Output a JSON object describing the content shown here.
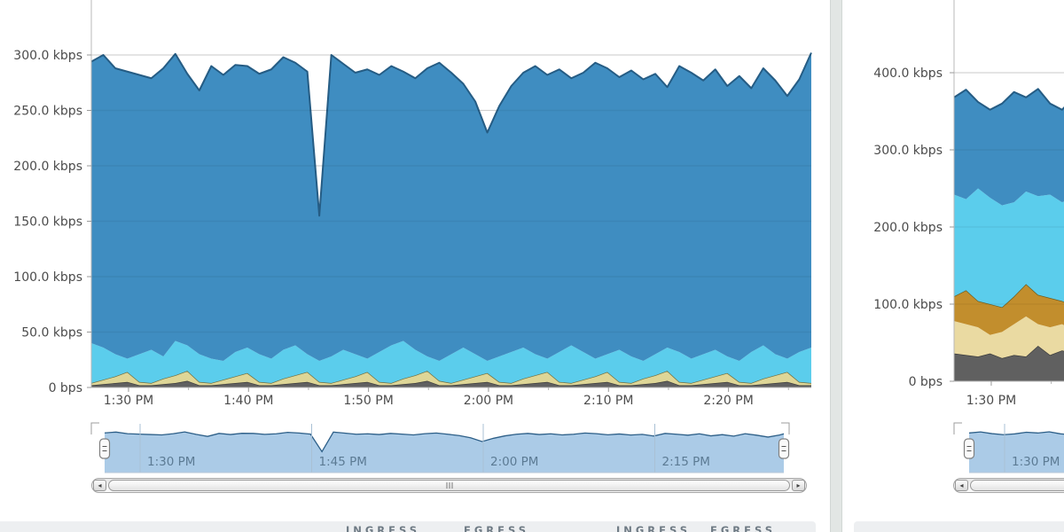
{
  "colors": {
    "blue_fill": "#3f8dc1",
    "blue_stroke": "#255c84",
    "cyan_fill": "#5bcdec",
    "tan_fill": "#ded697",
    "tan_stroke": "#6f6e3f",
    "gray_fill": "#606060",
    "gray_stroke": "#3d3d3d",
    "beige_fill": "#eadaa2",
    "ochre_fill": "#c28e2d",
    "ochre_stroke": "#6e5d20",
    "selector_fill": "#abcbe7",
    "selector_line": "#2d5f88",
    "selector_grid": "#a9c0d4",
    "selector_label": "#5c7b94",
    "axis_label": "#4c4c4c",
    "axis_line": "#b8b8b8",
    "grid_line": "#dcdcdc",
    "stats_bar_bg": "#edeff1",
    "stats_text": "#6e7a84",
    "divider": "#e2e6e4"
  },
  "ui": {
    "scroll_left_glyph": "◂",
    "scroll_right_glyph": "▸"
  },
  "left_panel": {
    "stats_headers": [
      "INGRESS",
      "EGRESS",
      "INGRESS",
      "EGRESS"
    ]
  },
  "chart_data": [
    {
      "type": "area",
      "stacked": true,
      "unit": "kbps",
      "grid": true,
      "legend": "none",
      "y_ticks": [
        {
          "label": "300.0 kbps",
          "value": 300
        },
        {
          "label": "250.0 kbps",
          "value": 250
        },
        {
          "label": "200.0 kbps",
          "value": 200
        },
        {
          "label": "150.0 kbps",
          "value": 150
        },
        {
          "label": "100.0 kbps",
          "value": 100
        },
        {
          "label": "50.0 kbps",
          "value": 50
        },
        {
          "label": "0 bps",
          "value": 0
        }
      ],
      "x_ticks": [
        {
          "label": "1:30 PM",
          "minute": 3.1
        },
        {
          "label": "1:40 PM",
          "minute": 13.1
        },
        {
          "label": "1:50 PM",
          "minute": 23.1
        },
        {
          "label": "2:00 PM",
          "minute": 33.1
        },
        {
          "label": "2:10 PM",
          "minute": 43.1
        },
        {
          "label": "2:20 PM",
          "minute": 53.1
        }
      ],
      "series": [
        {
          "name": "gray",
          "fill": "gray_fill",
          "stroke": "gray_stroke",
          "cumulative_kbps": [
            2,
            3,
            4,
            5,
            2,
            2,
            3,
            4,
            6,
            2,
            2,
            3,
            4,
            5,
            2,
            2,
            3,
            4,
            5,
            2,
            2,
            3,
            4,
            5,
            2,
            2,
            3,
            4,
            6,
            2,
            2,
            3,
            4,
            5,
            2,
            2,
            3,
            4,
            5,
            2,
            2,
            3,
            4,
            5,
            2,
            2,
            3,
            4,
            6,
            2,
            2,
            3,
            4,
            5,
            2,
            2,
            3,
            4,
            5,
            2,
            2
          ]
        },
        {
          "name": "tan",
          "fill": "tan_fill",
          "stroke": "tan_stroke",
          "cumulative_kbps": [
            4,
            7,
            10,
            14,
            5,
            4,
            8,
            11,
            15,
            5,
            4,
            7,
            10,
            13,
            5,
            4,
            8,
            11,
            14,
            5,
            4,
            7,
            10,
            14,
            5,
            4,
            8,
            11,
            15,
            6,
            4,
            7,
            10,
            13,
            5,
            4,
            8,
            11,
            14,
            5,
            4,
            7,
            10,
            14,
            5,
            4,
            8,
            11,
            15,
            5,
            4,
            7,
            10,
            13,
            5,
            4,
            8,
            11,
            14,
            5,
            4
          ]
        },
        {
          "name": "cyan",
          "fill": "cyan_fill",
          "stroke": null,
          "cumulative_kbps": [
            40,
            36,
            30,
            26,
            30,
            34,
            28,
            42,
            38,
            30,
            26,
            24,
            32,
            36,
            30,
            26,
            34,
            38,
            30,
            24,
            28,
            34,
            30,
            26,
            32,
            38,
            42,
            34,
            28,
            24,
            30,
            36,
            30,
            24,
            28,
            32,
            36,
            30,
            26,
            32,
            38,
            32,
            26,
            30,
            34,
            28,
            24,
            30,
            36,
            32,
            26,
            30,
            34,
            28,
            24,
            32,
            38,
            30,
            26,
            32,
            36
          ]
        },
        {
          "name": "blue",
          "fill": "blue_fill",
          "stroke": "blue_stroke",
          "cumulative_kbps": [
            294,
            300,
            288,
            285,
            282,
            279,
            288,
            301,
            283,
            268,
            290,
            282,
            291,
            290,
            283,
            287,
            298,
            293,
            285,
            155,
            300,
            292,
            284,
            287,
            282,
            290,
            285,
            279,
            288,
            293,
            284,
            274,
            258,
            230,
            254,
            272,
            284,
            290,
            282,
            287,
            279,
            284,
            293,
            288,
            280,
            286,
            278,
            283,
            271,
            290,
            284,
            277,
            287,
            272,
            281,
            270,
            288,
            277,
            263,
            278,
            302
          ]
        }
      ],
      "selector_labels": [
        {
          "label": "1:30 PM",
          "minute": 3.1
        },
        {
          "label": "1:45 PM",
          "minute": 18.1
        },
        {
          "label": "2:00 PM",
          "minute": 33.1
        },
        {
          "label": "2:15 PM",
          "minute": 48.1
        }
      ]
    },
    {
      "type": "area",
      "stacked": true,
      "unit": "kbps",
      "grid": true,
      "legend": "none",
      "y_ticks": [
        {
          "label": "400.0 kbps",
          "value": 400
        },
        {
          "label": "300.0 kbps",
          "value": 300
        },
        {
          "label": "200.0 kbps",
          "value": 200
        },
        {
          "label": "100.0 kbps",
          "value": 100
        },
        {
          "label": "0 bps",
          "value": 0
        }
      ],
      "x_ticks": [
        {
          "label": "1:30 PM",
          "minute": 3.1
        }
      ],
      "series": [
        {
          "name": "gray",
          "fill": "gray_fill",
          "stroke": "gray_stroke",
          "cumulative_kbps": [
            36,
            34,
            32,
            36,
            30,
            34,
            32,
            46,
            34,
            40,
            36
          ]
        },
        {
          "name": "beige",
          "fill": "beige_fill",
          "stroke": null,
          "cumulative_kbps": [
            78,
            74,
            70,
            60,
            64,
            74,
            84,
            74,
            70,
            74,
            66
          ]
        },
        {
          "name": "ochre",
          "fill": "ochre_fill",
          "stroke": "ochre_stroke",
          "cumulative_kbps": [
            110,
            118,
            104,
            100,
            96,
            110,
            126,
            112,
            108,
            104,
            98
          ]
        },
        {
          "name": "cyan",
          "fill": "cyan_fill",
          "stroke": null,
          "cumulative_kbps": [
            242,
            236,
            250,
            238,
            228,
            232,
            246,
            240,
            242,
            232,
            238
          ]
        },
        {
          "name": "blue",
          "fill": "blue_fill",
          "stroke": "blue_stroke",
          "cumulative_kbps": [
            368,
            378,
            362,
            352,
            360,
            375,
            368,
            379,
            360,
            352,
            368
          ]
        }
      ],
      "selector_labels": [
        {
          "label": "1:30 PM",
          "minute": 3.1
        }
      ]
    }
  ]
}
